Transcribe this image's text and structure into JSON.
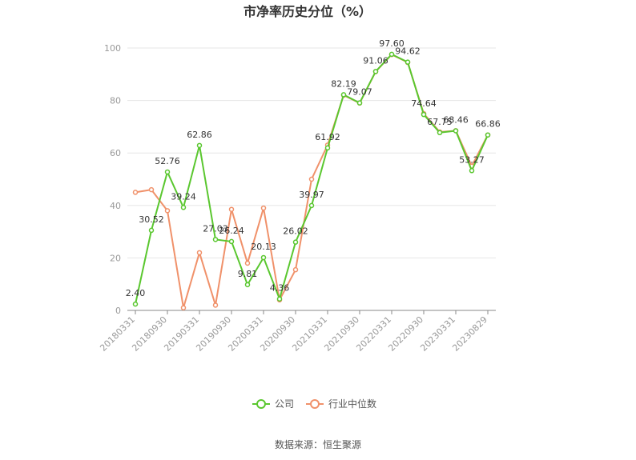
{
  "chart_data": {
    "type": "line",
    "title": "市净率历史分位（%）",
    "source": "数据来源：恒生聚源",
    "ylim": [
      0,
      100
    ],
    "yticks": [
      0,
      20,
      40,
      60,
      80,
      100
    ],
    "grid": true,
    "legend_position": "bottom",
    "x": [
      "20180331",
      "20180630",
      "20180930",
      "20181231",
      "20190331",
      "20190630",
      "20190930",
      "20191231",
      "20200331",
      "20200630",
      "20200930",
      "20201231",
      "20210331",
      "20210630",
      "20210930",
      "20211231",
      "20220331",
      "20220630",
      "20220930",
      "20221231",
      "20230331",
      "20230630",
      "20230829"
    ],
    "xtick_labels": [
      "20180331",
      "20180930",
      "20190331",
      "20190930",
      "20200331",
      "20200930",
      "20210331",
      "20210930",
      "20220331",
      "20220930",
      "20230331",
      "20230829"
    ],
    "series": [
      {
        "name": "公司",
        "color": "#5ac72f",
        "values": [
          2.4,
          30.52,
          52.76,
          39.24,
          62.86,
          27.03,
          26.24,
          9.81,
          20.13,
          4.36,
          26.02,
          39.97,
          61.92,
          82.19,
          79.07,
          91.06,
          97.6,
          94.62,
          74.64,
          67.75,
          68.46,
          53.27,
          66.86
        ],
        "labels": [
          "2.40",
          "30.52",
          "52.76",
          "39.24",
          "62.86",
          "27.03",
          "26.24",
          "9.81",
          "20.13",
          "4.36",
          "26.02",
          "39.97",
          "61.92",
          "82.19",
          "79.07",
          "91.06",
          "97.60",
          "94.62",
          "74.64",
          "67.75",
          "68.46",
          "53.27",
          "66.86"
        ]
      },
      {
        "name": "行业中位数",
        "color": "#f0916a",
        "values": [
          45.0,
          46.0,
          38.0,
          1.0,
          22.0,
          2.0,
          38.5,
          18.0,
          39.0,
          4.0,
          15.5,
          50.0,
          63.0,
          82.0,
          79.0,
          91.0,
          97.5,
          94.5,
          75.0,
          68.0,
          68.5,
          55.0,
          66.86
        ],
        "labels": []
      }
    ]
  }
}
